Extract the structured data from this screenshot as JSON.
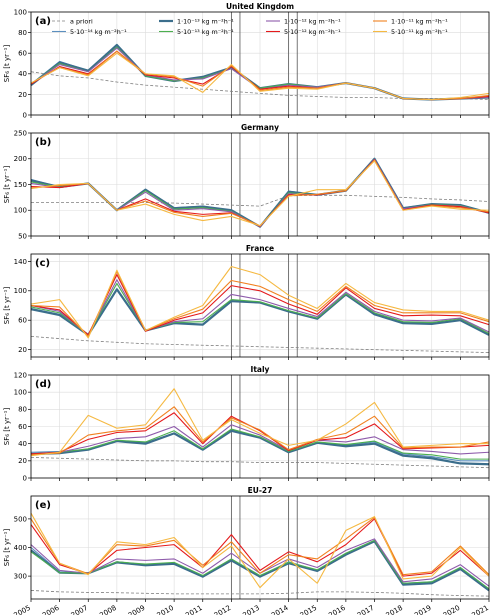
{
  "figure": {
    "years": [
      2005,
      2006,
      2007,
      2008,
      2009,
      2010,
      2011,
      2012,
      2013,
      2014,
      2015,
      2016,
      2017,
      2018,
      2019,
      2020,
      2021
    ],
    "vertical_markers": [
      2012.0,
      2012.3,
      2014.0,
      2014.3
    ],
    "ylabel": "SF₆ [t yr⁻¹]"
  },
  "legend": {
    "placement": "top",
    "entries": [
      {
        "label": "a priori",
        "color": "#808080",
        "dashed": true
      },
      {
        "label": "5·10⁻¹⁴ kg m⁻²h⁻¹",
        "color": "#5b8fbf"
      },
      {
        "label": "1·10⁻¹³ kg m⁻²h⁻¹",
        "color": "#3b6e8c",
        "thick": true
      },
      {
        "label": "5·10⁻¹³ kg m⁻²h⁻¹",
        "color": "#4caf50"
      },
      {
        "label": "1·10⁻¹² kg m⁻²h⁻¹",
        "color": "#8e5bab"
      },
      {
        "label": "5·10⁻¹² kg m⁻²h⁻¹",
        "color": "#e41a1c"
      },
      {
        "label": "1·10⁻¹¹ kg m⁻²h⁻¹",
        "color": "#f08020"
      },
      {
        "label": "5·10⁻¹¹ kg m⁻²h⁻¹",
        "color": "#f5b942"
      }
    ]
  },
  "chart_data": [
    {
      "type": "line",
      "panel": "(a)",
      "title": "United Kingdom",
      "ylim": [
        0,
        100
      ],
      "yticks": [
        0,
        20,
        40,
        60,
        80,
        100
      ],
      "grid": true,
      "x": [
        2005,
        2006,
        2007,
        2008,
        2009,
        2010,
        2011,
        2012,
        2013,
        2014,
        2015,
        2016,
        2017,
        2018,
        2019,
        2020,
        2021
      ],
      "series": [
        {
          "key": "apriori",
          "values": [
            42,
            38,
            36,
            32,
            29,
            27,
            25,
            23,
            21,
            19,
            18,
            17,
            17,
            16,
            16,
            16,
            15
          ]
        },
        {
          "key": "s5e14",
          "values": [
            30,
            52,
            43,
            68,
            38,
            33,
            37,
            46,
            26,
            30,
            27,
            31,
            26,
            16,
            15,
            16,
            17
          ]
        },
        {
          "key": "s1e13",
          "values": [
            29,
            51,
            43,
            68,
            38,
            33,
            37,
            46,
            26,
            30,
            27,
            31,
            26,
            16,
            15,
            16,
            17
          ]
        },
        {
          "key": "s5e13",
          "values": [
            30,
            50,
            42,
            66,
            38,
            33,
            36,
            45,
            26,
            30,
            27,
            31,
            26,
            16,
            15,
            16,
            17
          ]
        },
        {
          "key": "s1e12",
          "values": [
            30,
            49,
            42,
            65,
            39,
            34,
            35,
            45,
            25,
            29,
            27,
            31,
            26,
            16,
            15,
            16,
            17
          ]
        },
        {
          "key": "s5e12",
          "values": [
            30,
            47,
            40,
            62,
            39,
            36,
            30,
            47,
            25,
            28,
            26,
            31,
            26,
            16,
            15,
            16,
            18
          ]
        },
        {
          "key": "s1e11",
          "values": [
            31,
            46,
            39,
            62,
            40,
            37,
            28,
            48,
            24,
            27,
            26,
            31,
            26,
            16,
            15,
            16,
            19
          ]
        },
        {
          "key": "s5e11",
          "values": [
            31,
            46,
            38,
            60,
            40,
            38,
            22,
            49,
            23,
            26,
            25,
            31,
            26,
            16,
            15,
            17,
            21
          ]
        }
      ]
    },
    {
      "type": "line",
      "panel": "(b)",
      "title": "Germany",
      "ylim": [
        50,
        250
      ],
      "yticks": [
        50,
        100,
        150,
        200,
        250
      ],
      "grid": true,
      "x": [
        2005,
        2006,
        2007,
        2008,
        2009,
        2010,
        2011,
        2012,
        2013,
        2014,
        2015,
        2016,
        2017,
        2018,
        2019,
        2020,
        2021
      ],
      "series": [
        {
          "key": "apriori",
          "values": [
            115,
            115,
            115,
            115,
            115,
            114,
            112,
            110,
            108,
            128,
            129,
            129,
            127,
            125,
            122,
            120,
            117
          ]
        },
        {
          "key": "s5e14",
          "values": [
            160,
            145,
            152,
            100,
            140,
            105,
            108,
            100,
            68,
            137,
            130,
            138,
            200,
            105,
            112,
            110,
            95
          ]
        },
        {
          "key": "s1e13",
          "values": [
            158,
            145,
            152,
            100,
            140,
            104,
            107,
            100,
            68,
            136,
            130,
            138,
            200,
            104,
            112,
            110,
            95
          ]
        },
        {
          "key": "s5e13",
          "values": [
            155,
            145,
            152,
            100,
            138,
            102,
            105,
            98,
            68,
            134,
            130,
            138,
            199,
            103,
            111,
            109,
            95
          ]
        },
        {
          "key": "s1e12",
          "values": [
            152,
            144,
            152,
            100,
            135,
            100,
            103,
            97,
            68,
            132,
            130,
            138,
            199,
            103,
            110,
            108,
            95
          ]
        },
        {
          "key": "s5e12",
          "values": [
            146,
            144,
            152,
            100,
            122,
            98,
            92,
            95,
            69,
            130,
            130,
            138,
            198,
            101,
            110,
            107,
            95
          ]
        },
        {
          "key": "s1e11",
          "values": [
            143,
            148,
            152,
            100,
            118,
            96,
            88,
            94,
            70,
            128,
            131,
            138,
            197,
            100,
            109,
            105,
            97
          ]
        },
        {
          "key": "s5e11",
          "values": [
            142,
            150,
            152,
            100,
            112,
            92,
            80,
            88,
            70,
            127,
            140,
            140,
            196,
            100,
            108,
            102,
            100
          ]
        }
      ]
    },
    {
      "type": "line",
      "panel": "(c)",
      "title": "France",
      "ylim": [
        10,
        150
      ],
      "yticks": [
        20,
        60,
        100,
        140
      ],
      "grid": true,
      "x": [
        2005,
        2006,
        2007,
        2008,
        2009,
        2010,
        2011,
        2012,
        2013,
        2014,
        2015,
        2016,
        2017,
        2018,
        2019,
        2020,
        2021
      ],
      "series": [
        {
          "key": "apriori",
          "values": [
            38,
            35,
            32,
            30,
            28,
            27,
            26,
            25,
            24,
            23,
            22,
            21,
            20,
            19,
            18,
            17,
            16
          ]
        },
        {
          "key": "s5e14",
          "values": [
            76,
            68,
            40,
            102,
            46,
            56,
            54,
            86,
            84,
            72,
            62,
            95,
            68,
            56,
            55,
            60,
            40
          ]
        },
        {
          "key": "s1e13",
          "values": [
            75,
            67,
            40,
            102,
            46,
            56,
            54,
            86,
            84,
            72,
            62,
            95,
            68,
            56,
            55,
            60,
            40
          ]
        },
        {
          "key": "s5e13",
          "values": [
            78,
            70,
            40,
            110,
            46,
            57,
            58,
            88,
            85,
            73,
            63,
            96,
            70,
            58,
            57,
            62,
            42
          ]
        },
        {
          "key": "s1e12",
          "values": [
            80,
            72,
            40,
            115,
            46,
            58,
            62,
            95,
            88,
            76,
            65,
            98,
            72,
            60,
            59,
            63,
            44
          ]
        },
        {
          "key": "s5e12",
          "values": [
            80,
            74,
            40,
            122,
            45,
            60,
            70,
            107,
            100,
            82,
            68,
            104,
            76,
            66,
            67,
            66,
            54
          ]
        },
        {
          "key": "s1e11",
          "values": [
            80,
            78,
            38,
            126,
            46,
            62,
            75,
            114,
            106,
            88,
            72,
            106,
            80,
            70,
            70,
            70,
            58
          ]
        },
        {
          "key": "s5e11",
          "values": [
            82,
            88,
            36,
            128,
            46,
            64,
            80,
            133,
            122,
            94,
            76,
            110,
            84,
            74,
            72,
            72,
            60
          ]
        }
      ]
    },
    {
      "type": "line",
      "panel": "(d)",
      "title": "Italy",
      "ylim": [
        0,
        120
      ],
      "yticks": [
        0,
        20,
        40,
        60,
        80,
        100,
        120
      ],
      "grid": true,
      "x": [
        2005,
        2006,
        2007,
        2008,
        2009,
        2010,
        2011,
        2012,
        2013,
        2014,
        2015,
        2016,
        2017,
        2018,
        2019,
        2020,
        2021
      ],
      "series": [
        {
          "key": "apriori",
          "values": [
            24,
            23,
            22,
            21,
            20,
            20,
            19,
            19,
            18,
            18,
            18,
            17,
            16,
            15,
            14,
            13,
            12
          ]
        },
        {
          "key": "s5e14",
          "values": [
            30,
            31,
            33,
            43,
            41,
            52,
            33,
            56,
            47,
            30,
            42,
            38,
            42,
            28,
            25,
            20,
            20
          ]
        },
        {
          "key": "s1e13",
          "values": [
            28,
            29,
            33,
            43,
            40,
            52,
            33,
            55,
            47,
            30,
            41,
            37,
            40,
            26,
            23,
            17,
            16
          ]
        },
        {
          "key": "s5e13",
          "values": [
            28,
            30,
            34,
            44,
            42,
            55,
            34,
            57,
            48,
            31,
            42,
            39,
            43,
            29,
            27,
            22,
            22
          ]
        },
        {
          "key": "s1e12",
          "values": [
            28,
            30,
            37,
            46,
            48,
            60,
            36,
            62,
            50,
            32,
            44,
            42,
            48,
            33,
            31,
            28,
            30
          ]
        },
        {
          "key": "s5e12",
          "values": [
            28,
            30,
            45,
            53,
            55,
            76,
            40,
            72,
            55,
            32,
            44,
            47,
            63,
            34,
            35,
            36,
            38
          ]
        },
        {
          "key": "s1e11",
          "values": [
            27,
            29,
            50,
            55,
            58,
            83,
            42,
            70,
            56,
            33,
            45,
            52,
            72,
            35,
            36,
            36,
            42
          ]
        },
        {
          "key": "s5e11",
          "values": [
            26,
            30,
            73,
            58,
            62,
            104,
            44,
            68,
            52,
            38,
            44,
            63,
            88,
            36,
            38,
            40,
            40
          ]
        }
      ]
    },
    {
      "type": "line",
      "panel": "(e)",
      "title": "EU-27",
      "ylim": [
        220,
        580
      ],
      "yticks": [
        300,
        400,
        500
      ],
      "grid": true,
      "x": [
        2005,
        2006,
        2007,
        2008,
        2009,
        2010,
        2011,
        2012,
        2013,
        2014,
        2015,
        2016,
        2017,
        2018,
        2019,
        2020,
        2021
      ],
      "series": [
        {
          "key": "apriori",
          "values": [
            250,
            245,
            243,
            242,
            240,
            238,
            238,
            238,
            238,
            240,
            245,
            245,
            243,
            240,
            235,
            232,
            230
          ]
        },
        {
          "key": "s5e14",
          "values": [
            400,
            315,
            310,
            350,
            340,
            345,
            300,
            360,
            300,
            350,
            320,
            380,
            425,
            275,
            280,
            330,
            255
          ]
        },
        {
          "key": "s1e13",
          "values": [
            390,
            312,
            310,
            348,
            338,
            343,
            298,
            355,
            298,
            345,
            318,
            375,
            422,
            270,
            275,
            325,
            250
          ]
        },
        {
          "key": "s5e13",
          "values": [
            385,
            312,
            310,
            350,
            342,
            348,
            302,
            360,
            302,
            348,
            322,
            380,
            425,
            275,
            280,
            330,
            255
          ]
        },
        {
          "key": "s1e12",
          "values": [
            410,
            320,
            310,
            360,
            355,
            360,
            310,
            380,
            310,
            360,
            330,
            390,
            430,
            280,
            290,
            340,
            265
          ]
        },
        {
          "key": "s5e12",
          "values": [
            480,
            340,
            308,
            390,
            400,
            410,
            330,
            445,
            320,
            385,
            350,
            410,
            500,
            300,
            310,
            390,
            300
          ]
        },
        {
          "key": "s1e11",
          "values": [
            500,
            345,
            308,
            410,
            405,
            425,
            338,
            420,
            310,
            375,
            360,
            430,
            505,
            305,
            315,
            405,
            305
          ]
        },
        {
          "key": "s5e11",
          "values": [
            520,
            345,
            305,
            420,
            410,
            435,
            330,
            405,
            260,
            360,
            275,
            460,
            508,
            290,
            300,
            400,
            300
          ]
        }
      ]
    }
  ]
}
